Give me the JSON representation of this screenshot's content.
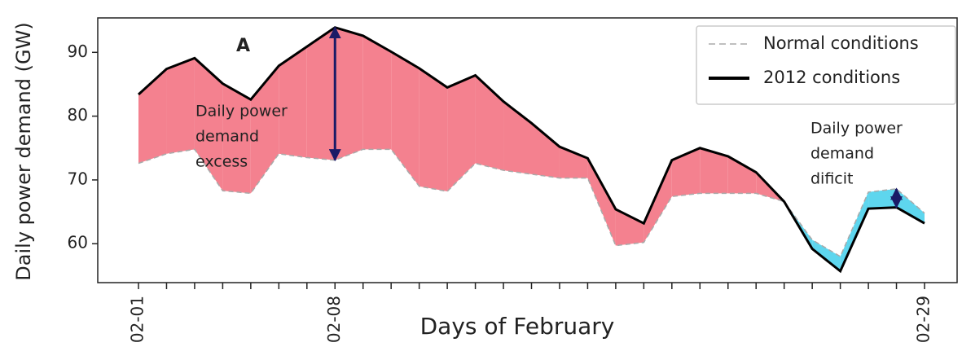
{
  "chart_data": {
    "type": "line",
    "xlabel": "Days of February",
    "ylabel": "Daily power demand (GW)",
    "categories": [
      "02-01",
      null,
      null,
      null,
      null,
      null,
      null,
      "02-08",
      null,
      null,
      null,
      null,
      null,
      null,
      null,
      null,
      null,
      null,
      null,
      null,
      null,
      null,
      null,
      null,
      null,
      null,
      null,
      null,
      "02-29"
    ],
    "series": [
      {
        "name": "Normal conditions",
        "color": "#aaaaaa",
        "linestyle": "dashed",
        "values": [
          72.6,
          74.1,
          74.8,
          68.3,
          67.9,
          74.1,
          73.5,
          73.1,
          74.8,
          74.8,
          69.0,
          68.2,
          72.6,
          71.5,
          70.9,
          70.3,
          70.3,
          59.7,
          60.2,
          67.4,
          67.9,
          67.9,
          67.9,
          66.6,
          60.6,
          58.0,
          68.1,
          68.6,
          64.8
        ]
      },
      {
        "name": "2012 conditions",
        "color": "#000000",
        "linestyle": "solid",
        "values": [
          83.4,
          87.4,
          89.1,
          85.1,
          82.6,
          87.9,
          90.9,
          93.9,
          92.6,
          90.1,
          87.5,
          84.5,
          86.4,
          82.3,
          78.9,
          75.2,
          73.4,
          65.4,
          63.2,
          73.1,
          75.0,
          73.7,
          71.2,
          66.6,
          59.2,
          55.7,
          65.5,
          65.7,
          63.2
        ]
      }
    ],
    "fill_above": "#f4818f",
    "fill_below": "#5ed6ee",
    "ylim": [
      53.9,
      95.4
    ],
    "yticks": [
      60,
      70,
      80,
      90
    ],
    "legend": "upper right",
    "panel_label": "A",
    "annotations": [
      {
        "lines": [
          "Daily power",
          "demand",
          "excess"
        ],
        "arrow_category": 7
      },
      {
        "lines": [
          "Daily power",
          "demand",
          "dificit"
        ],
        "arrow_category": 27
      }
    ]
  }
}
